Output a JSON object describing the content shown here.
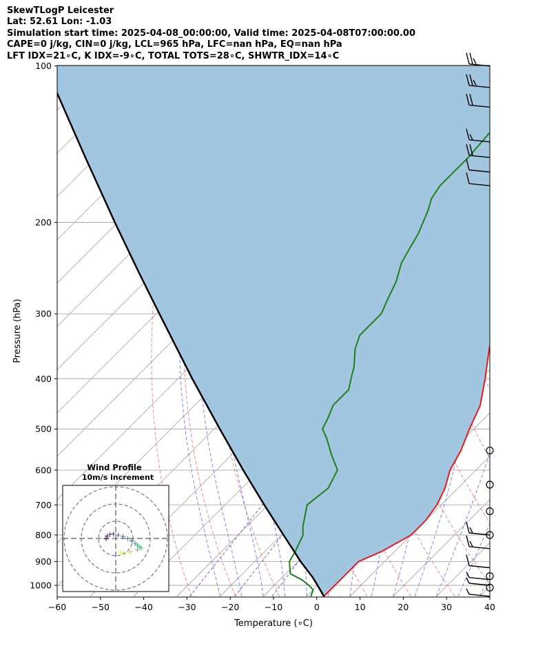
{
  "header": {
    "lines": [
      "SkewTLogP Leicester",
      "Lat: 52.61   Lon: -1.03",
      "Simulation start time: 2025-04-08_00:00:00, Valid time: 2025-04-08T07:00:00.00",
      "CAPE=0 j/kg, CIN=0 j/kg, LCL=965 hPa, LFC=nan hPa, EQ=nan hPa",
      "LFT IDX=21∘C, K IDX=-9∘C, TOTAL TOTS=28∘C, SHWTR_IDX=14∘C"
    ]
  },
  "chart_data": [
    {
      "type": "line",
      "subtype": "skew-t log-p",
      "xlabel": "Temperature (∘C)",
      "ylabel": "Pressure (hPa)",
      "xlim": [
        -60,
        40
      ],
      "ylim": [
        1050,
        100
      ],
      "y_scale": "log",
      "x_ticks": [
        "−60",
        "−50",
        "−40",
        "−30",
        "−20",
        "−10",
        "0",
        "10",
        "20",
        "30",
        "40"
      ],
      "y_ticks": [
        "100",
        "200",
        "300",
        "400",
        "500",
        "600",
        "700",
        "800",
        "900",
        "1000"
      ],
      "grid": true,
      "colors": {
        "temperature": "#e41a1c",
        "dewpoint": "#1a801a",
        "parcel": "#000000",
        "fill": "#a3c6e0",
        "dry_adiabat": "#f26b6b",
        "moist_adiabat": "#5a6cf0",
        "mixing_ratio": "#9b4fc9",
        "isotherm": "#aaaaaa"
      },
      "series": [
        {
          "role": "temperature",
          "points": [
            [
              1050,
              4
            ],
            [
              1020,
              4
            ],
            [
              1000,
              4
            ],
            [
              980,
              4
            ],
            [
              950,
              4
            ],
            [
              900,
              4
            ],
            [
              860,
              7
            ],
            [
              800,
              10
            ],
            [
              750,
              10
            ],
            [
              700,
              9
            ],
            [
              650,
              7
            ],
            [
              600,
              4
            ],
            [
              550,
              2
            ],
            [
              500,
              -1
            ],
            [
              450,
              -4
            ],
            [
              400,
              -9
            ],
            [
              350,
              -15
            ],
            [
              300,
              -21
            ],
            [
              280,
              -24
            ],
            [
              260,
              -27
            ],
            [
              250,
              -27
            ],
            [
              240,
              -27
            ],
            [
              230,
              -28
            ],
            [
              210,
              -30
            ],
            [
              190,
              -31
            ],
            [
              170,
              -32
            ],
            [
              150,
              -32
            ],
            [
              130,
              -33
            ],
            [
              115,
              -34
            ],
            [
              100,
              -34
            ]
          ]
        },
        {
          "role": "dewpoint",
          "points": [
            [
              1050,
              1
            ],
            [
              1020,
              0
            ],
            [
              1000,
              -2
            ],
            [
              975,
              -5
            ],
            [
              950,
              -9
            ],
            [
              900,
              -12
            ],
            [
              860,
              -13
            ],
            [
              800,
              -15
            ],
            [
              770,
              -17
            ],
            [
              700,
              -21
            ],
            [
              650,
              -20
            ],
            [
              600,
              -22
            ],
            [
              560,
              -27
            ],
            [
              520,
              -32
            ],
            [
              500,
              -35
            ],
            [
              480,
              -36
            ],
            [
              450,
              -38
            ],
            [
              420,
              -38
            ],
            [
              400,
              -40
            ],
            [
              380,
              -42
            ],
            [
              350,
              -46
            ],
            [
              330,
              -48
            ],
            [
              300,
              -48
            ],
            [
              280,
              -50
            ],
            [
              260,
              -52
            ],
            [
              240,
              -55
            ],
            [
              230,
              -56
            ],
            [
              210,
              -58
            ],
            [
              190,
              -61
            ],
            [
              180,
              -63
            ],
            [
              170,
              -64
            ],
            [
              150,
              -64
            ],
            [
              130,
              -65
            ],
            [
              115,
              -67
            ],
            [
              100,
              -68
            ]
          ]
        },
        {
          "role": "parcel",
          "points": [
            [
              1050,
              4
            ],
            [
              1000,
              0
            ],
            [
              965,
              -3
            ],
            [
              900,
              -9.4
            ],
            [
              850,
              -14.3
            ],
            [
              800,
              -19.5
            ],
            [
              700,
              -30.9
            ],
            [
              600,
              -43.8
            ],
            [
              500,
              -58.7
            ],
            [
              400,
              -76.7
            ],
            [
              300,
              -99.3
            ],
            [
              250,
              -113.5
            ],
            [
              200,
              -130.7
            ],
            [
              150,
              -152.5
            ],
            [
              100,
              -182.9
            ]
          ]
        }
      ],
      "wind_barbs_pressure": [
        1050,
        1000,
        975,
        925,
        850,
        800,
        700,
        600,
        500,
        400,
        300,
        250,
        200,
        180,
        170,
        160,
        150,
        140,
        120,
        110,
        100
      ],
      "wind_barbs_kt": [
        5,
        5,
        5,
        10,
        15,
        15,
        0,
        0,
        0,
        0,
        0,
        0,
        0,
        0,
        10,
        10,
        20,
        15,
        20,
        25,
        25
      ],
      "calm_circles_pressure": [
        550,
        640,
        720,
        800,
        960,
        1010
      ]
    },
    {
      "type": "scatter",
      "title": "Wind Profile",
      "subtitle": "10m/s increment",
      "rings": 3,
      "points": [
        [
          -2,
          0
        ],
        [
          -1.8,
          0.6
        ],
        [
          -1.2,
          0.9
        ],
        [
          -0.5,
          1.0
        ],
        [
          0.5,
          0.8
        ],
        [
          1.5,
          0.5
        ],
        [
          2.5,
          0.1
        ],
        [
          3.3,
          -0.4
        ],
        [
          4.0,
          -0.9
        ],
        [
          4.5,
          -1.3
        ],
        [
          5.0,
          -1.7
        ],
        [
          5.3,
          -1.9
        ],
        [
          4.5,
          -2.3
        ],
        [
          3.0,
          -2.7
        ],
        [
          1.8,
          -2.9
        ],
        [
          1.0,
          -2.7
        ]
      ]
    }
  ]
}
